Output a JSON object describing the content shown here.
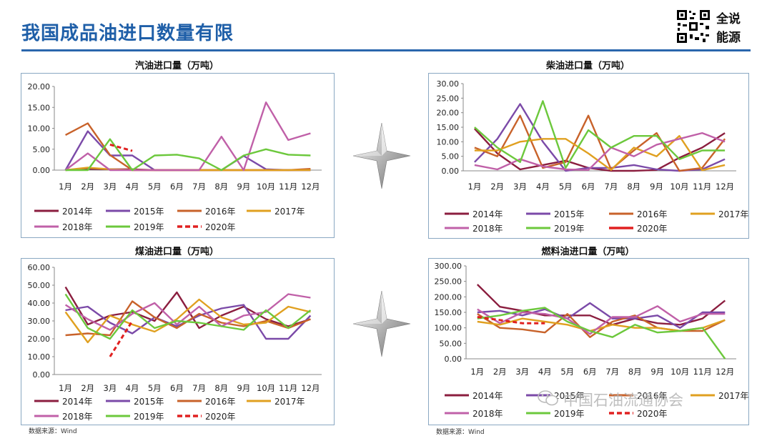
{
  "page": {
    "title": "我国成品油进口数量有限",
    "brand_line1": "全说",
    "brand_line2": "能源",
    "source_left": "数据来源：Wind",
    "source_right": "数据来源：Wind",
    "watermark": "中国石油流通协会"
  },
  "series_colors": {
    "2014年": "#8b1e3f",
    "2015年": "#7b4aa8",
    "2016年": "#c8622a",
    "2017年": "#e0a020",
    "2018年": "#c060a8",
    "2019年": "#6cc83c",
    "2020年": "#e02020"
  },
  "chart_data": [
    {
      "type": "line",
      "title": "汽油进口量（万吨）",
      "categories": [
        "1月",
        "2月",
        "3月",
        "4月",
        "5月",
        "6月",
        "7月",
        "8月",
        "9月",
        "10月",
        "11月",
        "12月"
      ],
      "ylim": [
        0,
        20
      ],
      "yticks": [
        "0.00",
        "5.00",
        "10.00",
        "15.00",
        "20.00"
      ],
      "grid": false,
      "legend": "bottom",
      "series": [
        {
          "name": "2014年",
          "values": [
            0,
            0.3,
            0.2,
            0.2,
            0,
            0,
            0,
            0,
            0,
            0,
            0,
            0
          ]
        },
        {
          "name": "2015年",
          "values": [
            0,
            9.3,
            3.5,
            3.5,
            0,
            0,
            0,
            0,
            3.4,
            0.2,
            0,
            0
          ]
        },
        {
          "name": "2016年",
          "values": [
            8.4,
            11.2,
            3.6,
            0,
            0,
            0,
            0,
            0,
            0,
            0,
            0,
            0.3
          ]
        },
        {
          "name": "2017年",
          "values": [
            0,
            0.6,
            0.2,
            0,
            0,
            0,
            0,
            0,
            0,
            0,
            0,
            0
          ]
        },
        {
          "name": "2018年",
          "values": [
            0,
            4.0,
            0,
            0,
            0,
            0,
            0,
            8.0,
            0,
            16.2,
            7.2,
            8.8
          ]
        },
        {
          "name": "2019年",
          "values": [
            0,
            0,
            7.4,
            0,
            3.5,
            3.7,
            2.8,
            0,
            3.5,
            5.0,
            3.7,
            3.5
          ]
        },
        {
          "name": "2020年",
          "dashed": true,
          "values": [
            null,
            null,
            6.1,
            4.6,
            null,
            null,
            null,
            null,
            null,
            null,
            null,
            null
          ]
        }
      ]
    },
    {
      "type": "line",
      "title": "柴油进口量（万吨）",
      "categories": [
        "1月",
        "2月",
        "3月",
        "4月",
        "5月",
        "6月",
        "7月",
        "8月",
        "9月",
        "10月",
        "11月",
        "12月"
      ],
      "ylim": [
        0,
        30
      ],
      "yticks": [
        "0.00",
        "5.00",
        "10.00",
        "15.00",
        "20.00",
        "25.00",
        "30.00"
      ],
      "grid": false,
      "legend": "bottom",
      "series": [
        {
          "name": "2014年",
          "values": [
            14.5,
            6,
            0.5,
            2,
            3.5,
            1,
            0,
            0,
            0.3,
            4.5,
            8,
            13
          ]
        },
        {
          "name": "2015年",
          "values": [
            3,
            11,
            23,
            10,
            0,
            1,
            1,
            2,
            0.5,
            0,
            0.5,
            4
          ]
        },
        {
          "name": "2016年",
          "values": [
            8,
            5,
            19,
            1,
            3,
            19,
            0.5,
            7,
            13,
            0,
            1,
            11
          ]
        },
        {
          "name": "2017年",
          "values": [
            7,
            7,
            10,
            11,
            11,
            6,
            0.3,
            8,
            5,
            12,
            0.2,
            2
          ]
        },
        {
          "name": "2018年",
          "values": [
            2,
            0.5,
            4,
            1.5,
            0.5,
            0.3,
            8,
            5,
            9,
            11,
            13,
            10
          ]
        },
        {
          "name": "2019年",
          "values": [
            15,
            8,
            3,
            24,
            1,
            14,
            8,
            12,
            12,
            4,
            7,
            7
          ]
        },
        {
          "name": "2020年",
          "values": [
            null,
            null,
            null,
            null,
            null,
            null,
            null,
            null,
            null,
            null,
            null,
            null
          ]
        }
      ]
    },
    {
      "type": "line",
      "title": "煤油进口量（万吨）",
      "categories": [
        "1月",
        "2月",
        "3月",
        "4月",
        "5月",
        "6月",
        "7月",
        "8月",
        "9月",
        "10月",
        "11月",
        "12月"
      ],
      "ylim": [
        0,
        60
      ],
      "yticks": [
        "0.00",
        "10.00",
        "20.00",
        "30.00",
        "40.00",
        "50.00",
        "60.00"
      ],
      "grid": false,
      "legend": "bottom",
      "series": [
        {
          "name": "2014年",
          "values": [
            49,
            28,
            33,
            35,
            30,
            46,
            26,
            33,
            38,
            31,
            27,
            31
          ]
        },
        {
          "name": "2015年",
          "values": [
            36,
            38,
            29,
            23,
            32,
            27,
            33,
            37,
            39,
            20,
            20,
            33
          ]
        },
        {
          "name": "2016年",
          "values": [
            22,
            23,
            22,
            41,
            32,
            26,
            34,
            29,
            27,
            30,
            26,
            31
          ]
        },
        {
          "name": "2017年",
          "values": [
            35,
            18,
            33,
            28,
            24,
            31,
            42,
            32,
            28,
            29,
            38,
            35
          ]
        },
        {
          "name": "2018年",
          "values": [
            39,
            31,
            25,
            34,
            40,
            28,
            38,
            27,
            33,
            35,
            45,
            43
          ]
        },
        {
          "name": "2019年",
          "values": [
            45,
            26,
            20,
            36,
            26,
            30,
            29,
            27,
            25,
            36,
            26,
            36
          ]
        },
        {
          "name": "2020年",
          "dashed": true,
          "values": [
            null,
            null,
            10,
            30,
            null,
            null,
            null,
            null,
            null,
            null,
            null,
            null
          ]
        }
      ]
    },
    {
      "type": "line",
      "title": "燃料油进口量（万吨）",
      "categories": [
        "1月",
        "2月",
        "3月",
        "4月",
        "5月",
        "6月",
        "7月",
        "8月",
        "9月",
        "10月",
        "11月",
        "12月"
      ],
      "ylim": [
        0,
        300
      ],
      "yticks": [
        "0.00",
        "50.00",
        "100.00",
        "150.00",
        "200.00",
        "250.00",
        "300.00"
      ],
      "grid": false,
      "legend": "bottom",
      "series": [
        {
          "name": "2014年",
          "values": [
            240,
            168,
            155,
            140,
            140,
            140,
            110,
            130,
            115,
            110,
            130,
            188
          ]
        },
        {
          "name": "2015年",
          "values": [
            150,
            155,
            140,
            160,
            130,
            180,
            130,
            130,
            140,
            100,
            150,
            150
          ]
        },
        {
          "name": "2016年",
          "values": [
            145,
            100,
            95,
            85,
            145,
            70,
            120,
            140,
            100,
            90,
            90,
            125
          ]
        },
        {
          "name": "2017年",
          "values": [
            120,
            110,
            130,
            120,
            110,
            90,
            110,
            100,
            100,
            90,
            100,
            125
          ]
        },
        {
          "name": "2018年",
          "values": [
            160,
            115,
            150,
            145,
            130,
            80,
            135,
            135,
            170,
            120,
            145,
            145
          ]
        },
        {
          "name": "2019年",
          "values": [
            130,
            140,
            155,
            165,
            120,
            90,
            70,
            110,
            85,
            90,
            100,
            0
          ]
        },
        {
          "name": "2020年",
          "dashed": true,
          "values": [
            135,
            125,
            115,
            115,
            null,
            null,
            null,
            null,
            null,
            null,
            null,
            null
          ]
        }
      ]
    }
  ],
  "legend_rows": [
    [
      "2014年",
      "2015年",
      "2016年",
      "2017年"
    ],
    [
      "2018年",
      "2019年",
      "2020年"
    ]
  ]
}
